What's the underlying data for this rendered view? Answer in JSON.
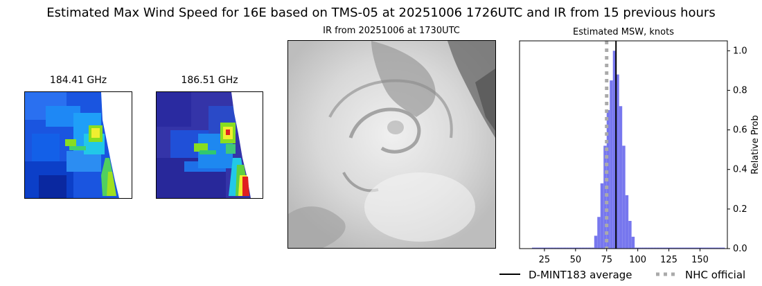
{
  "title": "Estimated Max Wind Speed for 16E based on TMS-05 at 20251006 1726UTC and IR from 15 previous hours",
  "panels": {
    "mw1": {
      "title": "184.41 GHz"
    },
    "mw2": {
      "title": "186.51 GHz"
    },
    "ir": {
      "title": "IR from 20251006 at 1730UTC"
    }
  },
  "colors": {
    "histogram": "#7777ee",
    "average_line": "#000000",
    "official_line": "#aaaaaa"
  },
  "chart_data": {
    "type": "bar",
    "title": "Estimated MSW, knots",
    "xlabel": "",
    "ylabel": "Relative Prob",
    "xlim": [
      5,
      172
    ],
    "ylim": [
      0,
      1.05
    ],
    "xticks": [
      25,
      50,
      75,
      100,
      125,
      150
    ],
    "yticks": [
      "0.0",
      "0.2",
      "0.4",
      "0.6",
      "0.8",
      "1.0"
    ],
    "bin_width": 2.5,
    "bin_starts": [
      15,
      17.5,
      20,
      22.5,
      25,
      27.5,
      30,
      32.5,
      35,
      37.5,
      40,
      42.5,
      45,
      47.5,
      50,
      52.5,
      55,
      57.5,
      60,
      62.5,
      65,
      67.5,
      70,
      72.5,
      75,
      77.5,
      80,
      82.5,
      85,
      87.5,
      90,
      92.5,
      95,
      97.5,
      100,
      102.5,
      105,
      107.5,
      110,
      112.5,
      115,
      117.5,
      120,
      122.5,
      125,
      127.5,
      130,
      132.5,
      135,
      137.5,
      140,
      142.5,
      145,
      147.5,
      150,
      152.5,
      155,
      157.5,
      160,
      162.5,
      165,
      167.5
    ],
    "values": [
      0.005,
      0.005,
      0.005,
      0.005,
      0.005,
      0.005,
      0.005,
      0.005,
      0.005,
      0.005,
      0.005,
      0.005,
      0.005,
      0.005,
      0.005,
      0.005,
      0.005,
      0.005,
      0.005,
      0.005,
      0.065,
      0.16,
      0.33,
      0.52,
      0.7,
      0.85,
      1.0,
      0.88,
      0.72,
      0.52,
      0.27,
      0.14,
      0.06,
      0.005,
      0.005,
      0.005,
      0.005,
      0.005,
      0.005,
      0.005,
      0.005,
      0.005,
      0.005,
      0.005,
      0.005,
      0.005,
      0.005,
      0.005,
      0.005,
      0.005,
      0.005,
      0.005,
      0.005,
      0.005,
      0.005,
      0.005,
      0.005,
      0.005,
      0.005,
      0.005,
      0.005,
      0.005
    ],
    "average": 82.5,
    "official": 75,
    "legend": [
      {
        "label": "D-MINT183 average",
        "style": "solid"
      },
      {
        "label": "NHC official",
        "style": "dotted"
      }
    ],
    "legend_position": "bottom-right"
  }
}
